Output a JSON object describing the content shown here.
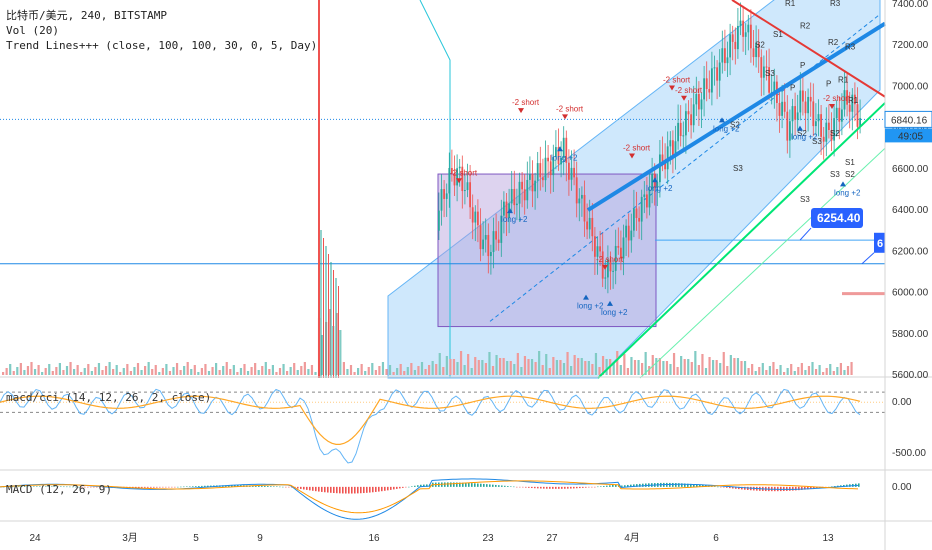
{
  "legend": {
    "title": "比特币/美元, 240, BITSTAMP",
    "vol": "Vol (20)",
    "indicator": "Trend Lines+++ (close, 100, 100, 30, 0, 5, Day)"
  },
  "panes": {
    "cci_legend": "macd/cci (14, 12, 26, 2, close)",
    "macd_legend": "MACD (12, 26, 9)"
  },
  "price_labels": {
    "current_price": "6840.16",
    "countdown": "49:05",
    "level_label": "6254.40",
    "partial_label": "6"
  },
  "colors": {
    "up": "#26a69a",
    "down": "#ef5350",
    "channel_fill": "#bbdefb",
    "trend_blue": "#1e88e5",
    "support_green": "#00e676",
    "box_fill": "#b39ddb",
    "price_tag": "#2962ff",
    "macd_line": "#1e88e5",
    "signal_line": "#ff9800"
  },
  "chart_data": [
    {
      "type": "candlestick",
      "title": "比特币/美元, 240, BITSTAMP",
      "ylim": [
        5600,
        7400
      ],
      "y_ticks": [
        "7400.00",
        "7200.00",
        "7000.00",
        "6800.00",
        "6600.00",
        "6400.00",
        "6200.00",
        "6000.00",
        "5800.00",
        "5600.00"
      ],
      "x_ticks": [
        "24",
        "3月",
        "5",
        "9",
        "16",
        "23",
        "27",
        "4月",
        "6",
        "13"
      ],
      "horizontal_levels": [
        6840.16,
        6254.4,
        6140
      ],
      "pivot_labels": [
        "R1",
        "R2",
        "R3",
        "P",
        "S1",
        "S2",
        "S3"
      ],
      "signals": [
        {
          "label": "-2 short",
          "type": "short"
        },
        {
          "label": "long +2",
          "type": "long"
        }
      ]
    },
    {
      "type": "line",
      "title": "macd/cci (14, 12, 26, 2, close)",
      "y_ticks": [
        "0.00",
        "-500.00"
      ],
      "ylim": [
        -650,
        200
      ]
    },
    {
      "type": "line",
      "title": "MACD (12, 26, 9)",
      "y_ticks": [
        "0.00"
      ],
      "ylim": [
        -150,
        60
      ]
    }
  ]
}
